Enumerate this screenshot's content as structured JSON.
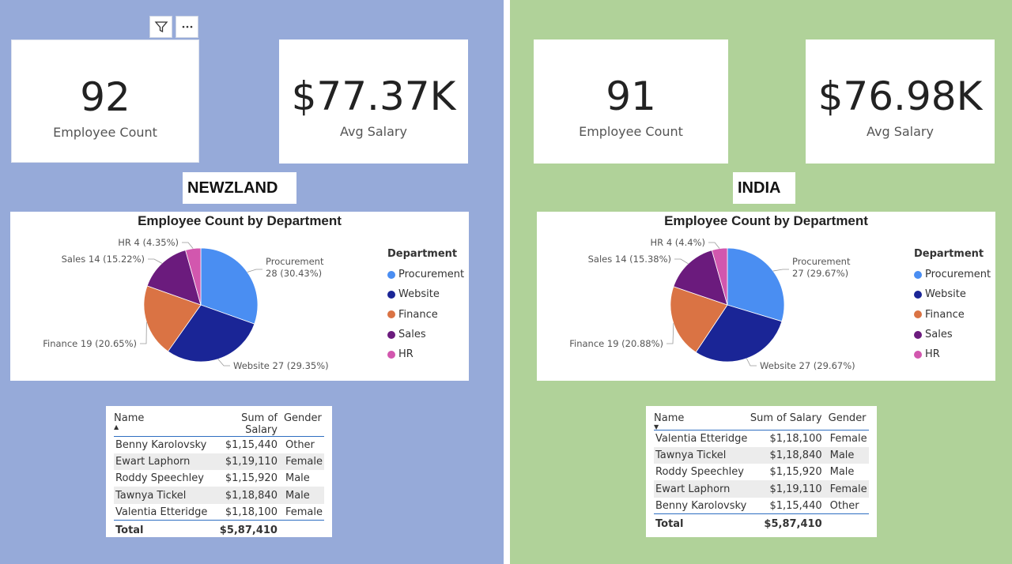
{
  "colors": {
    "left_bg": "#96aad9",
    "right_bg": "#b0d299",
    "procurement": "#4a8ef2",
    "website": "#1a2596",
    "finance": "#da7344",
    "sales": "#6b1b7d",
    "hr": "#d257ae"
  },
  "toolbar": {
    "filter_icon": "filter-icon",
    "more_icon": "more-options-icon"
  },
  "left": {
    "kpi_count": {
      "value": "92",
      "label": "Employee Count"
    },
    "kpi_salary": {
      "value": "$77.37K",
      "label": "Avg Salary"
    },
    "region": "NEWZLAND",
    "table": {
      "headers": [
        "Name",
        "Sum of Salary",
        "Gender"
      ],
      "sort": "ascending",
      "rows": [
        [
          "Benny Karolovsky",
          "$1,15,440",
          "Other"
        ],
        [
          "Ewart Laphorn",
          "$1,19,110",
          "Female"
        ],
        [
          "Roddy Speechley",
          "$1,15,920",
          "Male"
        ],
        [
          "Tawnya Tickel",
          "$1,18,840",
          "Male"
        ],
        [
          "Valentia Etteridge",
          "$1,18,100",
          "Female"
        ]
      ],
      "total_label": "Total",
      "total_value": "$5,87,410"
    }
  },
  "right": {
    "kpi_count": {
      "value": "91",
      "label": "Employee Count"
    },
    "kpi_salary": {
      "value": "$76.98K",
      "label": "Avg Salary"
    },
    "region": "INDIA",
    "table": {
      "headers": [
        "Name",
        "Sum of Salary",
        "Gender"
      ],
      "sort": "descending",
      "rows": [
        [
          "Valentia Etteridge",
          "$1,18,100",
          "Female"
        ],
        [
          "Tawnya Tickel",
          "$1,18,840",
          "Male"
        ],
        [
          "Roddy Speechley",
          "$1,15,920",
          "Male"
        ],
        [
          "Ewart Laphorn",
          "$1,19,110",
          "Female"
        ],
        [
          "Benny Karolovsky",
          "$1,15,440",
          "Other"
        ]
      ],
      "total_label": "Total",
      "total_value": "$5,87,410"
    }
  },
  "chart_data": [
    {
      "type": "pie",
      "title": "Employee Count by Department",
      "legend_title": "Department",
      "legend_position": "right",
      "categories": [
        "Procurement",
        "Website",
        "Finance",
        "Sales",
        "HR"
      ],
      "values": [
        28,
        27,
        19,
        14,
        4
      ],
      "labels": [
        "Procurement\n28 (30.43%)",
        "Website 27 (29.35%)",
        "Finance 19 (20.65%)",
        "Sales 14 (15.22%)",
        "HR 4 (4.35%)"
      ]
    },
    {
      "type": "pie",
      "title": "Employee Count by Department",
      "legend_title": "Department",
      "legend_position": "right",
      "categories": [
        "Procurement",
        "Website",
        "Finance",
        "Sales",
        "HR"
      ],
      "values": [
        27,
        27,
        19,
        14,
        4
      ],
      "labels": [
        "Procurement\n27 (29.67%)",
        "Website 27 (29.67%)",
        "Finance 19 (20.88%)",
        "Sales 14 (15.38%)",
        "HR 4 (4.4%)"
      ]
    }
  ]
}
